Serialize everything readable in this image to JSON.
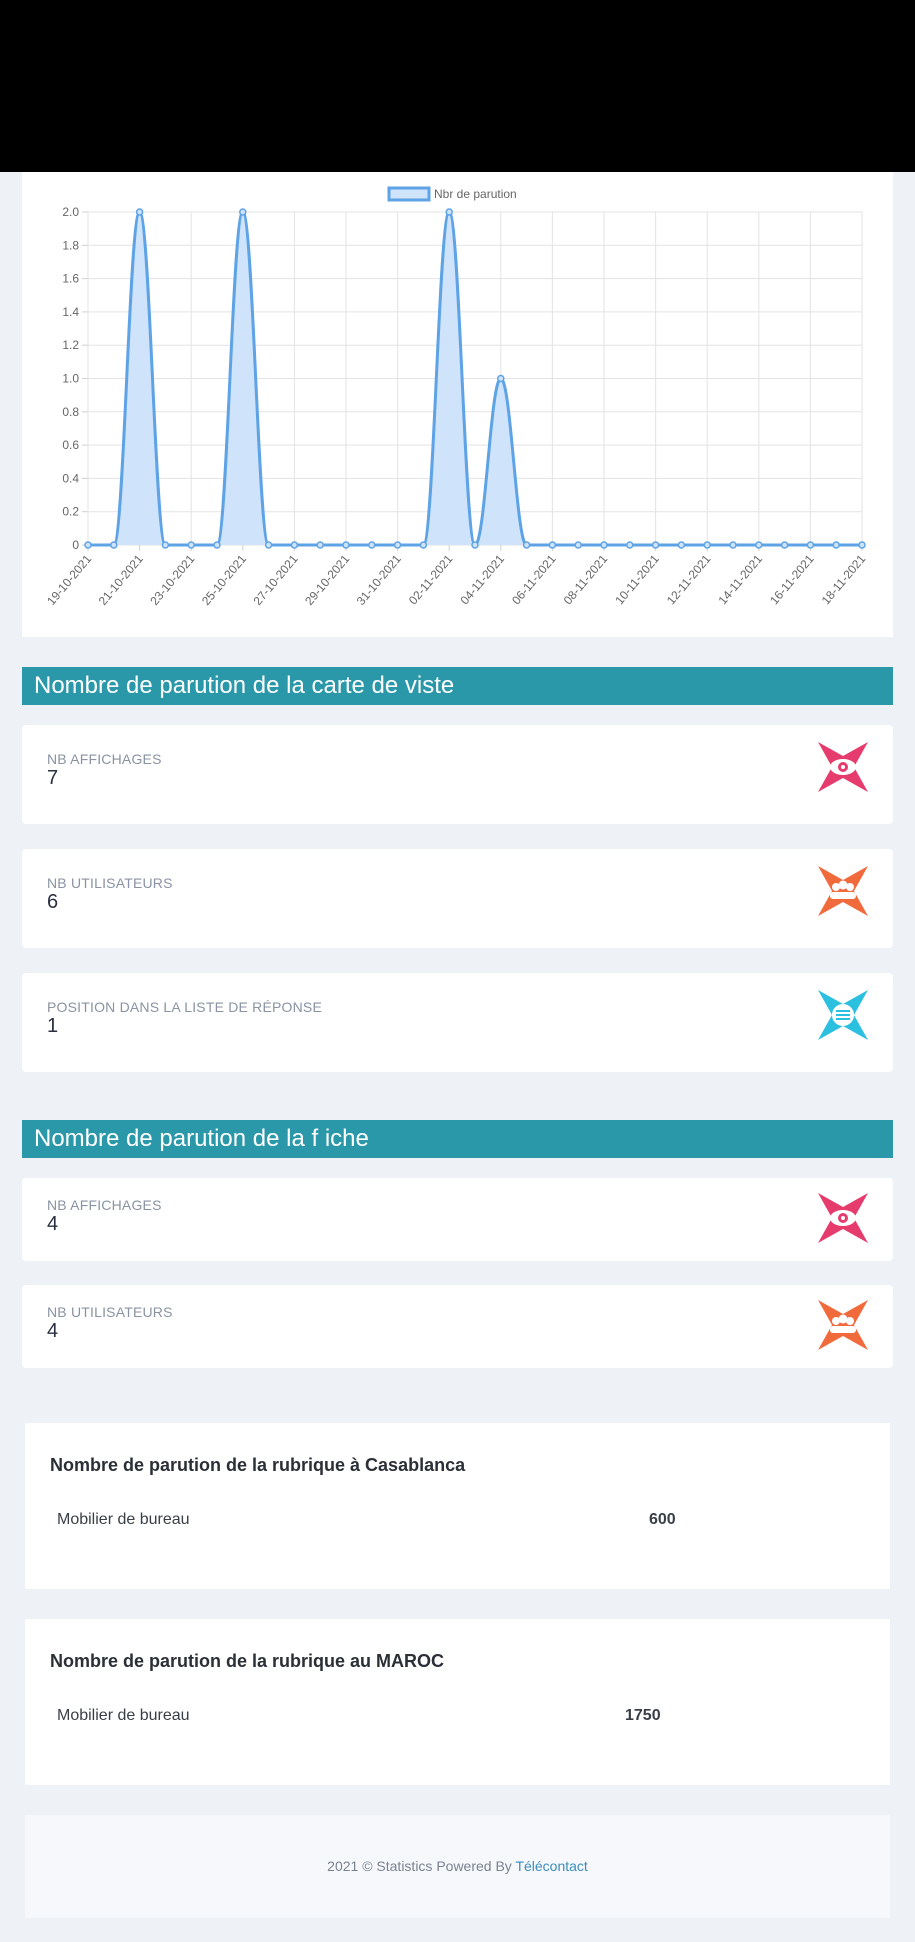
{
  "chart_data": {
    "type": "area",
    "legend": "Nbr de parution",
    "legend_position": "top-center",
    "x": [
      "19-10-2021",
      "20-10-2021",
      "21-10-2021",
      "22-10-2021",
      "23-10-2021",
      "24-10-2021",
      "25-10-2021",
      "26-10-2021",
      "27-10-2021",
      "28-10-2021",
      "29-10-2021",
      "30-10-2021",
      "31-10-2021",
      "01-11-2021",
      "02-11-2021",
      "03-11-2021",
      "04-11-2021",
      "05-11-2021",
      "06-11-2021",
      "07-11-2021",
      "08-11-2021",
      "09-11-2021",
      "10-11-2021",
      "11-11-2021",
      "12-11-2021",
      "13-11-2021",
      "14-11-2021",
      "15-11-2021",
      "16-11-2021",
      "17-11-2021",
      "18-11-2021"
    ],
    "tick_labels": [
      "19-10-2021",
      "21-10-2021",
      "23-10-2021",
      "25-10-2021",
      "27-10-2021",
      "29-10-2021",
      "31-10-2021",
      "02-11-2021",
      "04-11-2021",
      "06-11-2021",
      "08-11-2021",
      "10-11-2021",
      "12-11-2021",
      "14-11-2021",
      "16-11-2021",
      "18-11-2021"
    ],
    "series": [
      {
        "name": "Nbr de parution",
        "values": [
          0,
          0,
          2,
          0,
          0,
          0,
          2,
          0,
          0,
          0,
          0,
          0,
          0,
          0,
          2,
          0,
          1,
          0,
          0,
          0,
          0,
          0,
          0,
          0,
          0,
          0,
          0,
          0,
          0,
          0,
          0
        ]
      }
    ],
    "ylim": [
      0,
      2
    ],
    "yticks": [
      "0",
      "0.2",
      "0.4",
      "0.6",
      "0.8",
      "1.0",
      "1.2",
      "1.4",
      "1.6",
      "1.8",
      "2.0"
    ],
    "grid": true,
    "line_color": "#5ea3e6",
    "fill_color": "#cfe3fb"
  },
  "section_carte": {
    "title": "Nombre de parution de la carte de viste",
    "cards": [
      {
        "label": "NB AFFICHAGES",
        "value": "7",
        "icon": "eye-icon",
        "color": "#e63c6d"
      },
      {
        "label": "NB UTILISATEURS",
        "value": "6",
        "icon": "users-icon",
        "color": "#f06a3c"
      },
      {
        "label": "POSITION DANS LA LISTE DE RÉPONSE",
        "value": "1",
        "icon": "list-icon",
        "color": "#2cc0e0"
      }
    ]
  },
  "section_fiche": {
    "title": "Nombre de parution de la f iche",
    "cards": [
      {
        "label": "NB AFFICHAGES",
        "value": "4",
        "icon": "eye-icon",
        "color": "#e63c6d"
      },
      {
        "label": "NB UTILISATEURS",
        "value": "4",
        "icon": "users-icon",
        "color": "#f06a3c"
      }
    ]
  },
  "rubrique_casablanca": {
    "title": "Nombre de parution de la rubrique à Casablanca",
    "name": "Mobilier de bureau",
    "value": "600"
  },
  "rubrique_maroc": {
    "title": "Nombre de parution de la rubrique au MAROC",
    "name": "Mobilier de bureau",
    "value": "1750"
  },
  "footer": {
    "text": "2021 © Statistics Powered By ",
    "link": "Télécontact"
  }
}
